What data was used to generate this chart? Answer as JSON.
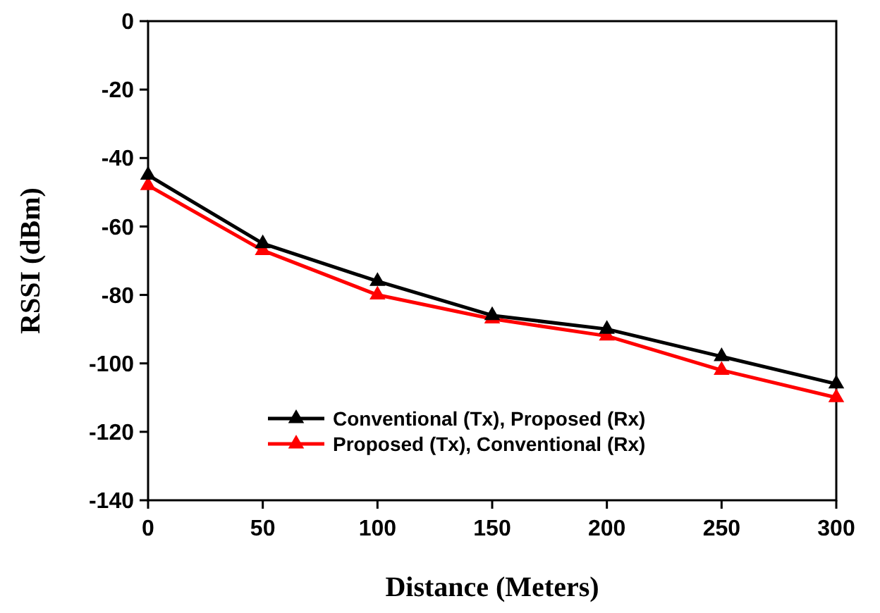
{
  "chart_data": {
    "type": "line",
    "xlabel": "Distance (Meters)",
    "ylabel": "RSSI (dBm)",
    "x": [
      0,
      50,
      100,
      150,
      200,
      250,
      300
    ],
    "xlim": [
      0,
      300
    ],
    "xticks": [
      0,
      50,
      100,
      150,
      200,
      250,
      300
    ],
    "ylim": [
      -140,
      0
    ],
    "yticks": [
      -140,
      -120,
      -100,
      -80,
      -60,
      -40,
      -20,
      0
    ],
    "marker": "triangle",
    "legend": "bottom",
    "grid": false,
    "series": [
      {
        "name": "Conventional (Tx), Proposed (Rx)",
        "color": "#000000",
        "values": [
          -45,
          -65,
          -76,
          -86,
          -90,
          -98,
          -106
        ]
      },
      {
        "name": "Proposed (Tx), Conventional (Rx)",
        "color": "#ff0000",
        "values": [
          -48,
          -67,
          -80,
          -87,
          -92,
          -102,
          -110
        ]
      }
    ]
  }
}
